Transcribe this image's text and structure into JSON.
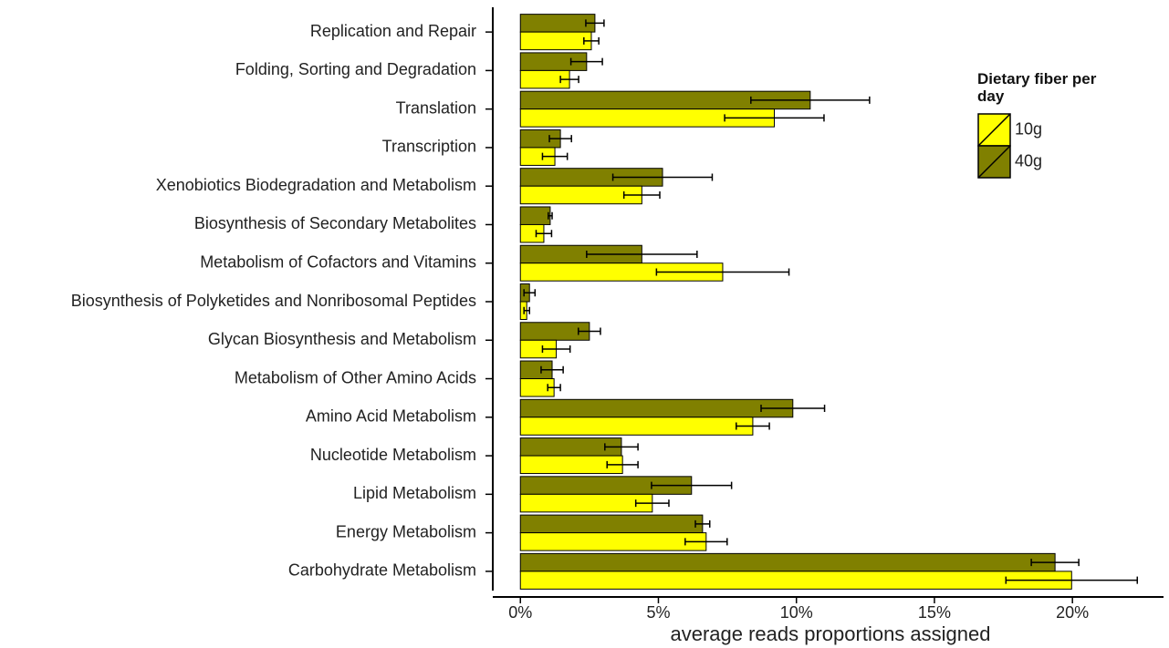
{
  "chart_data": {
    "type": "grouped-horizontal-bar",
    "x_label": "average reads proportions assigned",
    "legend_title": "Dietary fiber per day",
    "legend_position": "top-right",
    "categories": [
      "Replication and Repair",
      "Folding, Sorting and Degradation",
      "Translation",
      "Transcription",
      "Xenobiotics Biodegradation and Metabolism",
      "Biosynthesis of Secondary Metabolites",
      "Metabolism of Cofactors and Vitamins",
      "Biosynthesis of Polyketides and Nonribosomal Peptides",
      "Glycan Biosynthesis and Metabolism",
      "Metabolism of Other Amino Acids",
      "Amino Acid Metabolism",
      "Nucleotide Metabolism",
      "Lipid Metabolism",
      "Energy Metabolism",
      "Carbohydrate Metabolism"
    ],
    "series": [
      {
        "name": "10g",
        "color": "#ffff00",
        "values": [
          2.57,
          1.78,
          9.2,
          1.25,
          4.4,
          0.85,
          7.33,
          0.23,
          1.3,
          1.22,
          8.42,
          3.7,
          4.78,
          6.73,
          19.97
        ],
        "errors": [
          0.27,
          0.33,
          1.8,
          0.45,
          0.65,
          0.28,
          2.4,
          0.1,
          0.5,
          0.23,
          0.6,
          0.56,
          0.6,
          0.76,
          2.38
        ]
      },
      {
        "name": "40g",
        "color": "#808000",
        "values": [
          2.7,
          2.4,
          10.5,
          1.45,
          5.15,
          1.08,
          4.4,
          0.33,
          2.5,
          1.15,
          9.87,
          3.66,
          6.2,
          6.6,
          19.37
        ],
        "errors": [
          0.33,
          0.57,
          2.15,
          0.4,
          1.8,
          0.07,
          2.0,
          0.2,
          0.4,
          0.4,
          1.15,
          0.6,
          1.45,
          0.26,
          0.86
        ]
      }
    ],
    "xlim": [
      -1,
      23.3
    ],
    "xticks": [
      {
        "value": 0,
        "label": "0%"
      },
      {
        "value": 5,
        "label": "5%"
      },
      {
        "value": 10,
        "label": "10%"
      },
      {
        "value": 15,
        "label": "15%"
      },
      {
        "value": 20,
        "label": "20%"
      }
    ],
    "grid": false
  }
}
